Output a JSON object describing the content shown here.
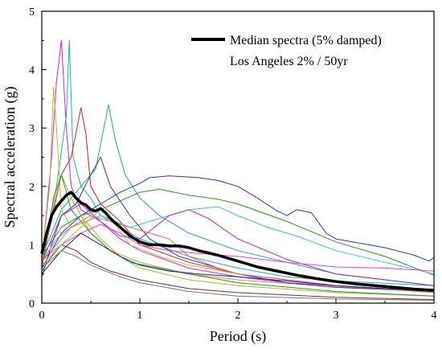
{
  "chart_data": {
    "type": "line",
    "xlabel": "Period (s)",
    "ylabel": "Spectral acceleration (g)",
    "xlim": [
      0,
      4
    ],
    "ylim": [
      0,
      5
    ],
    "x_ticks": [
      "0",
      "1",
      "2",
      "3",
      "4"
    ],
    "y_ticks": [
      "0",
      "1",
      "2",
      "3",
      "4",
      "5"
    ],
    "grid": false,
    "legend_position": "top-right",
    "legend": {
      "series_label": "Median spectra (5% damped)",
      "note": "Los Angeles 2% / 50yr"
    },
    "median": {
      "name": "Median spectra (5% damped)",
      "color": "#000000",
      "points": [
        [
          0,
          0.85
        ],
        [
          0.05,
          1.2
        ],
        [
          0.1,
          1.5
        ],
        [
          0.15,
          1.65
        ],
        [
          0.2,
          1.75
        ],
        [
          0.25,
          1.85
        ],
        [
          0.3,
          1.9
        ],
        [
          0.35,
          1.8
        ],
        [
          0.4,
          1.72
        ],
        [
          0.45,
          1.68
        ],
        [
          0.5,
          1.6
        ],
        [
          0.55,
          1.58
        ],
        [
          0.6,
          1.62
        ],
        [
          0.65,
          1.55
        ],
        [
          0.7,
          1.45
        ],
        [
          0.8,
          1.3
        ],
        [
          0.9,
          1.15
        ],
        [
          1.0,
          1.05
        ],
        [
          1.1,
          1.0
        ],
        [
          1.2,
          1.0
        ],
        [
          1.3,
          0.98
        ],
        [
          1.4,
          0.98
        ],
        [
          1.5,
          0.95
        ],
        [
          1.6,
          0.9
        ],
        [
          1.8,
          0.82
        ],
        [
          2.0,
          0.72
        ],
        [
          2.2,
          0.62
        ],
        [
          2.4,
          0.55
        ],
        [
          2.6,
          0.48
        ],
        [
          2.8,
          0.42
        ],
        [
          3.0,
          0.37
        ],
        [
          3.2,
          0.33
        ],
        [
          3.4,
          0.3
        ],
        [
          3.6,
          0.27
        ],
        [
          3.8,
          0.24
        ],
        [
          4.0,
          0.22
        ]
      ]
    },
    "series": [
      {
        "color": "#e619e6",
        "points": [
          [
            0,
            0.7
          ],
          [
            0.1,
            2.5
          ],
          [
            0.15,
            3.8
          ],
          [
            0.2,
            4.5
          ],
          [
            0.25,
            3.0
          ],
          [
            0.3,
            2.0
          ],
          [
            0.4,
            1.6
          ],
          [
            0.6,
            1.4
          ],
          [
            0.8,
            1.1
          ],
          [
            1.0,
            0.9
          ],
          [
            1.5,
            0.6
          ],
          [
            2.0,
            0.45
          ],
          [
            2.5,
            0.35
          ],
          [
            3.0,
            0.3
          ],
          [
            3.5,
            0.25
          ],
          [
            4.0,
            0.2
          ]
        ]
      },
      {
        "color": "#20b2aa",
        "points": [
          [
            0,
            0.8
          ],
          [
            0.15,
            2.0
          ],
          [
            0.25,
            3.2
          ],
          [
            0.28,
            4.5
          ],
          [
            0.32,
            2.5
          ],
          [
            0.4,
            2.0
          ],
          [
            0.5,
            1.8
          ],
          [
            0.6,
            1.5
          ],
          [
            0.8,
            1.3
          ],
          [
            1.0,
            1.1
          ],
          [
            1.5,
            0.8
          ],
          [
            2.0,
            0.6
          ],
          [
            2.5,
            0.45
          ],
          [
            3.0,
            0.38
          ],
          [
            4.0,
            0.3
          ]
        ]
      },
      {
        "color": "#d42020",
        "points": [
          [
            0,
            0.6
          ],
          [
            0.1,
            1.5
          ],
          [
            0.2,
            2.2
          ],
          [
            0.3,
            2.5
          ],
          [
            0.4,
            3.35
          ],
          [
            0.45,
            2.9
          ],
          [
            0.5,
            2.0
          ],
          [
            0.6,
            1.7
          ],
          [
            0.8,
            1.4
          ],
          [
            1.0,
            1.0
          ],
          [
            1.5,
            0.7
          ],
          [
            2.0,
            0.5
          ],
          [
            3.0,
            0.3
          ],
          [
            4.0,
            0.2
          ]
        ]
      },
      {
        "color": "#20a8a8",
        "points": [
          [
            0,
            0.8
          ],
          [
            0.2,
            1.6
          ],
          [
            0.4,
            2.0
          ],
          [
            0.55,
            2.3
          ],
          [
            0.68,
            3.4
          ],
          [
            0.75,
            2.8
          ],
          [
            0.85,
            2.2
          ],
          [
            1.0,
            1.8
          ],
          [
            1.2,
            1.5
          ],
          [
            1.5,
            1.2
          ],
          [
            2.0,
            0.9
          ],
          [
            2.5,
            0.7
          ],
          [
            3.0,
            0.5
          ],
          [
            4.0,
            0.3
          ]
        ]
      },
      {
        "color": "#1f3fb0",
        "points": [
          [
            0,
            0.6
          ],
          [
            0.2,
            1.2
          ],
          [
            0.4,
            1.5
          ],
          [
            0.6,
            1.7
          ],
          [
            0.8,
            1.9
          ],
          [
            1.0,
            2.05
          ],
          [
            1.1,
            2.15
          ],
          [
            1.3,
            2.18
          ],
          [
            1.6,
            2.15
          ],
          [
            1.8,
            2.1
          ],
          [
            2.0,
            2.0
          ],
          [
            2.2,
            1.8
          ],
          [
            2.4,
            1.58
          ],
          [
            2.5,
            1.5
          ],
          [
            2.6,
            1.6
          ],
          [
            2.75,
            1.55
          ],
          [
            2.9,
            1.2
          ],
          [
            3.0,
            1.1
          ],
          [
            3.5,
            0.95
          ],
          [
            3.8,
            0.82
          ],
          [
            3.95,
            0.72
          ],
          [
            4.0,
            0.78
          ]
        ]
      },
      {
        "color": "#1f9a1f",
        "points": [
          [
            0,
            0.8
          ],
          [
            0.2,
            1.3
          ],
          [
            0.4,
            1.5
          ],
          [
            0.6,
            1.6
          ],
          [
            0.8,
            1.75
          ],
          [
            1.0,
            1.9
          ],
          [
            1.2,
            1.95
          ],
          [
            1.5,
            1.85
          ],
          [
            1.8,
            1.78
          ],
          [
            2.0,
            1.7
          ],
          [
            2.5,
            1.4
          ],
          [
            3.0,
            1.05
          ],
          [
            3.5,
            0.8
          ],
          [
            4.0,
            0.48
          ]
        ]
      },
      {
        "color": "#30c8c8",
        "points": [
          [
            0,
            0.7
          ],
          [
            0.3,
            1.3
          ],
          [
            0.6,
            1.5
          ],
          [
            0.9,
            1.3
          ],
          [
            1.2,
            1.45
          ],
          [
            1.5,
            1.6
          ],
          [
            1.8,
            1.65
          ],
          [
            2.0,
            1.5
          ],
          [
            2.3,
            1.3
          ],
          [
            2.6,
            1.15
          ],
          [
            3.0,
            0.9
          ],
          [
            3.5,
            0.7
          ],
          [
            4.0,
            0.5
          ]
        ]
      },
      {
        "color": "#a020f0",
        "points": [
          [
            0,
            0.7
          ],
          [
            0.2,
            1.5
          ],
          [
            0.4,
            1.7
          ],
          [
            0.6,
            1.4
          ],
          [
            0.8,
            1.15
          ],
          [
            1.0,
            1.1
          ],
          [
            1.3,
            1.5
          ],
          [
            1.5,
            1.6
          ],
          [
            1.7,
            1.45
          ],
          [
            2.0,
            1.1
          ],
          [
            2.5,
            0.75
          ],
          [
            3.0,
            0.5
          ],
          [
            4.0,
            0.3
          ]
        ]
      },
      {
        "color": "#ff3cc8",
        "points": [
          [
            0,
            0.75
          ],
          [
            0.2,
            1.0
          ],
          [
            0.4,
            1.2
          ],
          [
            0.6,
            1.35
          ],
          [
            0.8,
            1.2
          ],
          [
            1.0,
            1.0
          ],
          [
            1.3,
            0.9
          ],
          [
            1.6,
            0.85
          ],
          [
            2.0,
            0.8
          ],
          [
            2.5,
            0.7
          ],
          [
            3.0,
            0.62
          ],
          [
            3.5,
            0.6
          ],
          [
            4.0,
            0.55
          ]
        ]
      },
      {
        "color": "#b8b820",
        "points": [
          [
            0,
            0.75
          ],
          [
            0.08,
            2.0
          ],
          [
            0.12,
            3.7
          ],
          [
            0.15,
            3.0
          ],
          [
            0.2,
            1.6
          ],
          [
            0.3,
            1.3
          ],
          [
            0.45,
            1.4
          ],
          [
            0.6,
            1.1
          ],
          [
            0.8,
            0.8
          ],
          [
            1.0,
            0.6
          ],
          [
            1.5,
            0.4
          ],
          [
            2.0,
            0.3
          ],
          [
            3.0,
            0.18
          ],
          [
            4.0,
            0.12
          ]
        ]
      },
      {
        "color": "#e6911e",
        "points": [
          [
            0,
            0.7
          ],
          [
            0.1,
            1.4
          ],
          [
            0.2,
            2.2
          ],
          [
            0.3,
            1.8
          ],
          [
            0.5,
            1.2
          ],
          [
            0.7,
            0.9
          ],
          [
            1.0,
            0.7
          ],
          [
            1.5,
            0.5
          ],
          [
            2.0,
            0.4
          ],
          [
            3.0,
            0.28
          ],
          [
            4.0,
            0.2
          ]
        ]
      },
      {
        "color": "#2832d4",
        "points": [
          [
            0,
            0.45
          ],
          [
            0.1,
            1.0
          ],
          [
            0.2,
            1.5
          ],
          [
            0.35,
            1.7
          ],
          [
            0.5,
            2.2
          ],
          [
            0.6,
            2.5
          ],
          [
            0.7,
            2.0
          ],
          [
            0.9,
            1.5
          ],
          [
            1.1,
            1.1
          ],
          [
            1.4,
            0.8
          ],
          [
            2.0,
            0.5
          ],
          [
            2.5,
            0.35
          ],
          [
            3.0,
            0.27
          ],
          [
            4.0,
            0.2
          ]
        ]
      },
      {
        "color": "#8c2828",
        "points": [
          [
            0,
            0.55
          ],
          [
            0.1,
            0.8
          ],
          [
            0.2,
            1.0
          ],
          [
            0.35,
            0.9
          ],
          [
            0.5,
            0.7
          ],
          [
            0.7,
            0.55
          ],
          [
            1.0,
            0.4
          ],
          [
            1.5,
            0.25
          ],
          [
            2.0,
            0.18
          ],
          [
            3.0,
            0.1
          ],
          [
            4.0,
            0.06
          ]
        ]
      },
      {
        "color": "#1e9a32",
        "points": [
          [
            0,
            0.6
          ],
          [
            0.12,
            1.8
          ],
          [
            0.2,
            2.2
          ],
          [
            0.3,
            1.6
          ],
          [
            0.5,
            1.2
          ],
          [
            0.7,
            0.9
          ],
          [
            0.9,
            0.7
          ],
          [
            1.2,
            0.6
          ],
          [
            1.5,
            0.5
          ],
          [
            2.0,
            0.35
          ],
          [
            3.0,
            0.2
          ],
          [
            4.0,
            0.12
          ]
        ]
      },
      {
        "color": "#c0c020",
        "points": [
          [
            0,
            0.65
          ],
          [
            0.2,
            1.0
          ],
          [
            0.4,
            1.3
          ],
          [
            0.6,
            1.6
          ],
          [
            0.7,
            1.45
          ],
          [
            0.9,
            1.0
          ],
          [
            1.2,
            0.8
          ],
          [
            1.5,
            0.65
          ],
          [
            2.0,
            0.5
          ],
          [
            2.5,
            0.4
          ],
          [
            3.0,
            0.3
          ],
          [
            4.0,
            0.2
          ]
        ]
      },
      {
        "color": "#ff5c5c",
        "points": [
          [
            0,
            0.7
          ],
          [
            0.15,
            1.1
          ],
          [
            0.3,
            1.3
          ],
          [
            0.5,
            1.5
          ],
          [
            0.7,
            1.4
          ],
          [
            0.9,
            1.3
          ],
          [
            1.1,
            1.2
          ],
          [
            1.3,
            1.1
          ],
          [
            1.5,
            0.8
          ],
          [
            1.8,
            0.6
          ],
          [
            2.0,
            0.5
          ],
          [
            3.0,
            0.3
          ],
          [
            4.0,
            0.18
          ]
        ]
      },
      {
        "color": "#0a2896",
        "points": [
          [
            0,
            0.5
          ],
          [
            0.2,
            0.9
          ],
          [
            0.4,
            1.2
          ],
          [
            0.6,
            1.0
          ],
          [
            0.8,
            0.8
          ],
          [
            1.0,
            0.65
          ],
          [
            1.3,
            0.55
          ],
          [
            1.6,
            0.5
          ],
          [
            2.0,
            0.45
          ],
          [
            2.5,
            0.38
          ],
          [
            3.0,
            0.3
          ],
          [
            4.0,
            0.2
          ]
        ]
      },
      {
        "color": "#787878",
        "points": [
          [
            0,
            0.6
          ],
          [
            0.2,
            0.9
          ],
          [
            0.35,
            0.8
          ],
          [
            0.5,
            0.65
          ],
          [
            0.8,
            0.45
          ],
          [
            1.0,
            0.35
          ],
          [
            1.5,
            0.2
          ],
          [
            2.0,
            0.12
          ],
          [
            3.0,
            0.07
          ],
          [
            4.0,
            0.05
          ]
        ]
      }
    ]
  }
}
